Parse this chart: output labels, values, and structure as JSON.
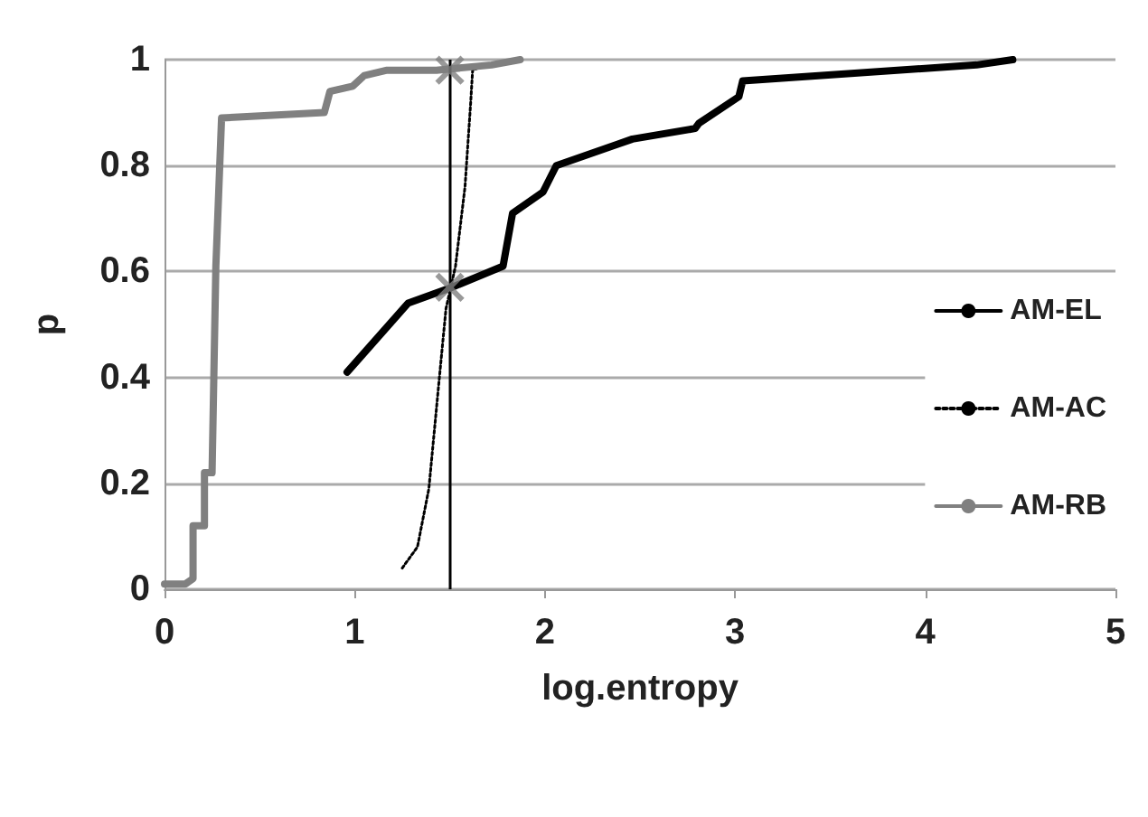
{
  "chart_data": {
    "type": "line",
    "xlabel": "log.entropy",
    "ylabel": "p",
    "xlim": [
      0,
      5
    ],
    "xticks": [
      0,
      1,
      2,
      3,
      4,
      5
    ],
    "ylim": [
      0,
      1
    ],
    "yticks": [
      0,
      0.2,
      0.4,
      0.6,
      0.8,
      1
    ],
    "grid": "y",
    "legend": "right",
    "marker": "none",
    "series": [
      {
        "name": "AM-EL",
        "color": "#000000",
        "line_style": "solid",
        "x": [
          0.96,
          1.28,
          1.51,
          1.78,
          1.83,
          1.99,
          2.06,
          2.38,
          2.46,
          2.79,
          2.81,
          3.02,
          3.04,
          4.27,
          4.46
        ],
        "values": [
          0.41,
          0.54,
          0.57,
          0.61,
          0.71,
          0.75,
          0.8,
          0.84,
          0.85,
          0.87,
          0.88,
          0.93,
          0.96,
          0.99,
          1
        ]
      },
      {
        "name": "AM-AC",
        "color": "#000000",
        "line_style": "dotted",
        "x": [
          1.25,
          1.33,
          1.39,
          1.44,
          1.48,
          1.53,
          1.58,
          1.61,
          1.62,
          1.69
        ],
        "values": [
          0.04,
          0.08,
          0.19,
          0.38,
          0.53,
          0.61,
          0.76,
          0.92,
          0.98,
          0.99
        ]
      },
      {
        "name": "AM-RB",
        "color": "#808080",
        "line_style": "solid",
        "x": [
          0,
          0.11,
          0.15,
          0.15,
          0.21,
          0.21,
          0.25,
          0.27,
          0.3,
          0.84,
          0.87,
          0.99,
          1.05,
          1.17,
          1.43,
          1.72,
          1.87
        ],
        "values": [
          0.01,
          0.01,
          0.02,
          0.12,
          0.12,
          0.22,
          0.22,
          0.61,
          0.89,
          0.9,
          0.94,
          0.95,
          0.97,
          0.98,
          0.98,
          0.99,
          1
        ]
      },
      {
        "type": "scatter",
        "marker": "cross",
        "color": "#808080",
        "x": [
          1.5,
          1.5
        ],
        "values": [
          0.98,
          0.57
        ]
      }
    ],
    "ref_lines": [
      {
        "axis": "x",
        "value": 1.5,
        "color": "#000000",
        "line_style": "solid"
      }
    ]
  }
}
